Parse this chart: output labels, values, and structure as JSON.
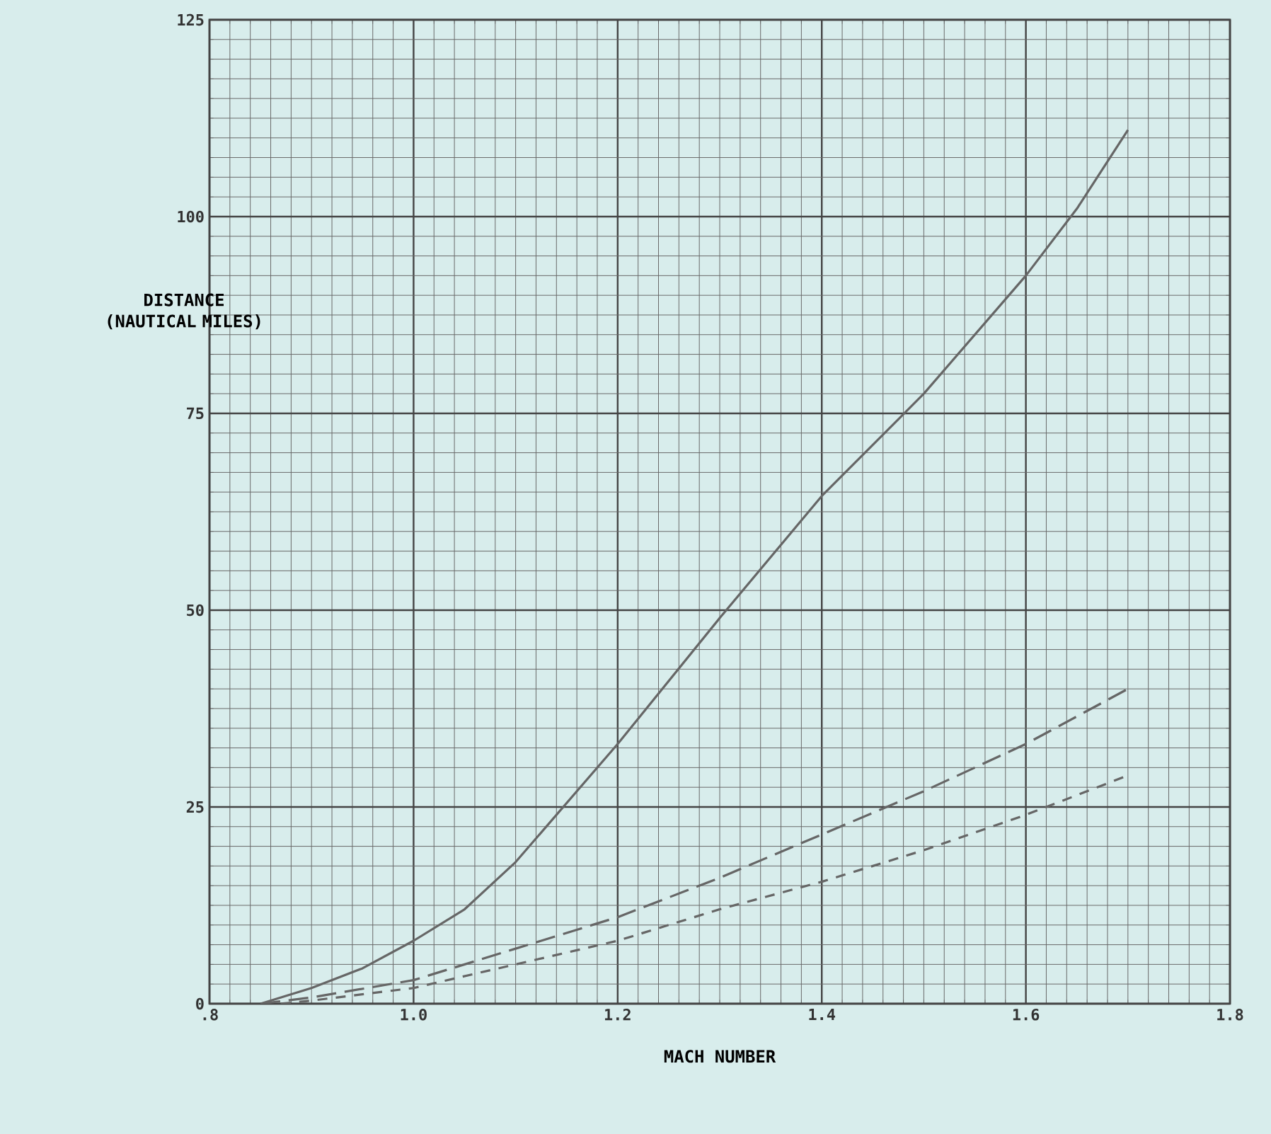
{
  "chart_data": {
    "type": "line",
    "xlabel": "MACH NUMBER",
    "ylabel": "DISTANCE (NAUTICAL MILES)",
    "xlim": [
      0.8,
      1.8
    ],
    "ylim": [
      0,
      125
    ],
    "xticks": [
      {
        "value": 0.8,
        "label": ".8"
      },
      {
        "value": 1.0,
        "label": "1.0"
      },
      {
        "value": 1.2,
        "label": "1.2"
      },
      {
        "value": 1.4,
        "label": "1.4"
      },
      {
        "value": 1.6,
        "label": "1.6"
      },
      {
        "value": 1.8,
        "label": "1.8"
      }
    ],
    "yticks": [
      0,
      25,
      50,
      75,
      100,
      125
    ],
    "grid": true,
    "series": [
      {
        "color": "#666666",
        "line_style": "solid",
        "x": [
          0.85,
          0.9,
          0.95,
          1.0,
          1.05,
          1.1,
          1.15,
          1.2,
          1.3,
          1.4,
          1.5,
          1.6,
          1.65,
          1.7
        ],
        "values": [
          0,
          2,
          4.5,
          8,
          12,
          18,
          25.5,
          33,
          49,
          64.5,
          77.5,
          92.5,
          101,
          111
        ]
      },
      {
        "color": "#666666",
        "line_style": "dashed",
        "x": [
          0.85,
          0.9,
          1.0,
          1.1,
          1.2,
          1.3,
          1.4,
          1.5,
          1.6,
          1.7
        ],
        "values": [
          0,
          0.8,
          3,
          7,
          11,
          16,
          21.5,
          27,
          33,
          40
        ]
      },
      {
        "color": "#666666",
        "line_style": "dashed",
        "x": [
          0.87,
          0.9,
          1.0,
          1.1,
          1.2,
          1.3,
          1.4,
          1.5,
          1.6,
          1.7
        ],
        "values": [
          0,
          0.4,
          2,
          5,
          8,
          12,
          15.5,
          19.5,
          24,
          29
        ]
      }
    ]
  }
}
